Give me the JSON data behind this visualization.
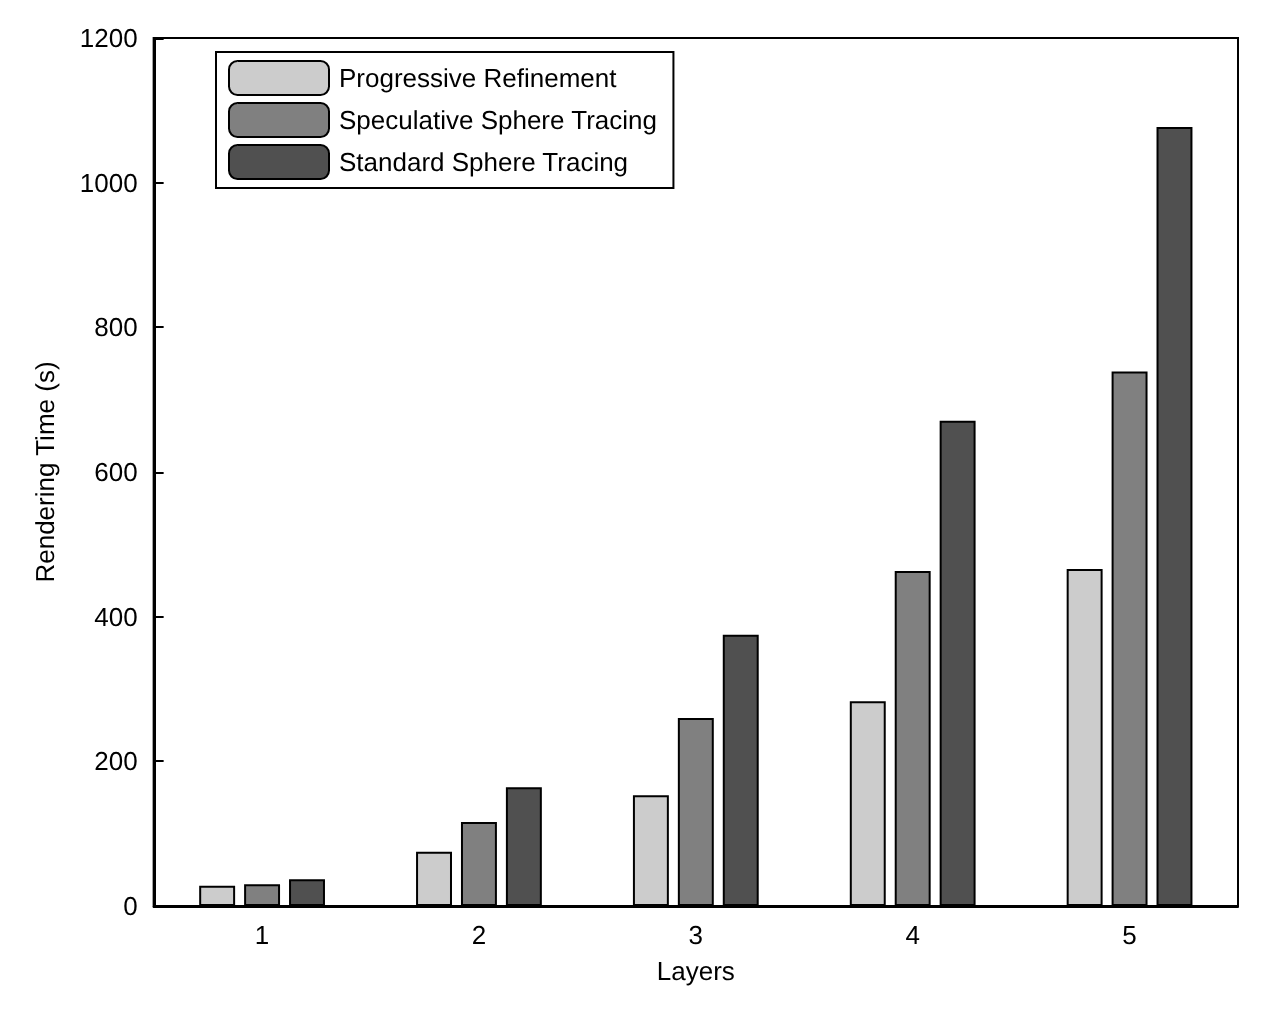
{
  "chart_data": {
    "type": "bar",
    "xlabel": "Layers",
    "ylabel": "Rendering Time (s)",
    "categories": [
      "1",
      "2",
      "3",
      "4",
      "5"
    ],
    "series": [
      {
        "name": "Progressive Refinement",
        "color": "#cccccc",
        "values": [
          28,
          75,
          153,
          283,
          466
        ]
      },
      {
        "name": "Speculative Sphere Tracing",
        "color": "#808080",
        "values": [
          30,
          116,
          260,
          463,
          739
        ]
      },
      {
        "name": "Standard Sphere Tracing",
        "color": "#505050",
        "values": [
          37,
          164,
          375,
          671,
          1077
        ]
      }
    ],
    "ylim": [
      0,
      1200
    ],
    "yticks": [
      0,
      200,
      400,
      600,
      800,
      1000,
      1200
    ],
    "grid": false,
    "legend": "top left"
  }
}
